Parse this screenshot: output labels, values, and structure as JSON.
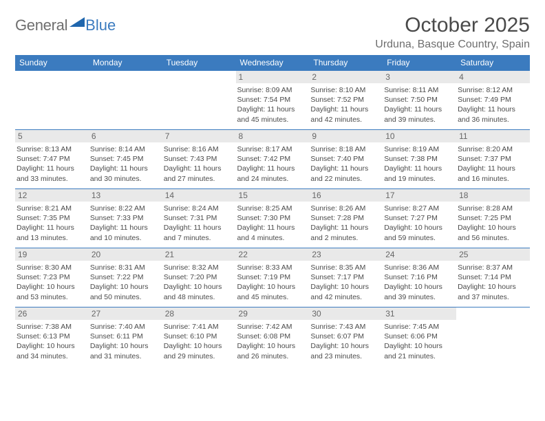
{
  "brand": {
    "part1": "General",
    "part2": "Blue"
  },
  "title": "October 2025",
  "location": "Urduna, Basque Country, Spain",
  "colors": {
    "header_bg": "#3b7bbf",
    "header_text": "#ffffff",
    "daynum_bg": "#e9e9e9",
    "border": "#3b7bbf",
    "text": "#4a4a4a"
  },
  "weekdays": [
    "Sunday",
    "Monday",
    "Tuesday",
    "Wednesday",
    "Thursday",
    "Friday",
    "Saturday"
  ],
  "weeks": [
    [
      null,
      null,
      null,
      {
        "n": 1,
        "sr": "8:09 AM",
        "ss": "7:54 PM",
        "dl": "11 hours and 45 minutes."
      },
      {
        "n": 2,
        "sr": "8:10 AM",
        "ss": "7:52 PM",
        "dl": "11 hours and 42 minutes."
      },
      {
        "n": 3,
        "sr": "8:11 AM",
        "ss": "7:50 PM",
        "dl": "11 hours and 39 minutes."
      },
      {
        "n": 4,
        "sr": "8:12 AM",
        "ss": "7:49 PM",
        "dl": "11 hours and 36 minutes."
      }
    ],
    [
      {
        "n": 5,
        "sr": "8:13 AM",
        "ss": "7:47 PM",
        "dl": "11 hours and 33 minutes."
      },
      {
        "n": 6,
        "sr": "8:14 AM",
        "ss": "7:45 PM",
        "dl": "11 hours and 30 minutes."
      },
      {
        "n": 7,
        "sr": "8:16 AM",
        "ss": "7:43 PM",
        "dl": "11 hours and 27 minutes."
      },
      {
        "n": 8,
        "sr": "8:17 AM",
        "ss": "7:42 PM",
        "dl": "11 hours and 24 minutes."
      },
      {
        "n": 9,
        "sr": "8:18 AM",
        "ss": "7:40 PM",
        "dl": "11 hours and 22 minutes."
      },
      {
        "n": 10,
        "sr": "8:19 AM",
        "ss": "7:38 PM",
        "dl": "11 hours and 19 minutes."
      },
      {
        "n": 11,
        "sr": "8:20 AM",
        "ss": "7:37 PM",
        "dl": "11 hours and 16 minutes."
      }
    ],
    [
      {
        "n": 12,
        "sr": "8:21 AM",
        "ss": "7:35 PM",
        "dl": "11 hours and 13 minutes."
      },
      {
        "n": 13,
        "sr": "8:22 AM",
        "ss": "7:33 PM",
        "dl": "11 hours and 10 minutes."
      },
      {
        "n": 14,
        "sr": "8:24 AM",
        "ss": "7:31 PM",
        "dl": "11 hours and 7 minutes."
      },
      {
        "n": 15,
        "sr": "8:25 AM",
        "ss": "7:30 PM",
        "dl": "11 hours and 4 minutes."
      },
      {
        "n": 16,
        "sr": "8:26 AM",
        "ss": "7:28 PM",
        "dl": "11 hours and 2 minutes."
      },
      {
        "n": 17,
        "sr": "8:27 AM",
        "ss": "7:27 PM",
        "dl": "10 hours and 59 minutes."
      },
      {
        "n": 18,
        "sr": "8:28 AM",
        "ss": "7:25 PM",
        "dl": "10 hours and 56 minutes."
      }
    ],
    [
      {
        "n": 19,
        "sr": "8:30 AM",
        "ss": "7:23 PM",
        "dl": "10 hours and 53 minutes."
      },
      {
        "n": 20,
        "sr": "8:31 AM",
        "ss": "7:22 PM",
        "dl": "10 hours and 50 minutes."
      },
      {
        "n": 21,
        "sr": "8:32 AM",
        "ss": "7:20 PM",
        "dl": "10 hours and 48 minutes."
      },
      {
        "n": 22,
        "sr": "8:33 AM",
        "ss": "7:19 PM",
        "dl": "10 hours and 45 minutes."
      },
      {
        "n": 23,
        "sr": "8:35 AM",
        "ss": "7:17 PM",
        "dl": "10 hours and 42 minutes."
      },
      {
        "n": 24,
        "sr": "8:36 AM",
        "ss": "7:16 PM",
        "dl": "10 hours and 39 minutes."
      },
      {
        "n": 25,
        "sr": "8:37 AM",
        "ss": "7:14 PM",
        "dl": "10 hours and 37 minutes."
      }
    ],
    [
      {
        "n": 26,
        "sr": "7:38 AM",
        "ss": "6:13 PM",
        "dl": "10 hours and 34 minutes."
      },
      {
        "n": 27,
        "sr": "7:40 AM",
        "ss": "6:11 PM",
        "dl": "10 hours and 31 minutes."
      },
      {
        "n": 28,
        "sr": "7:41 AM",
        "ss": "6:10 PM",
        "dl": "10 hours and 29 minutes."
      },
      {
        "n": 29,
        "sr": "7:42 AM",
        "ss": "6:08 PM",
        "dl": "10 hours and 26 minutes."
      },
      {
        "n": 30,
        "sr": "7:43 AM",
        "ss": "6:07 PM",
        "dl": "10 hours and 23 minutes."
      },
      {
        "n": 31,
        "sr": "7:45 AM",
        "ss": "6:06 PM",
        "dl": "10 hours and 21 minutes."
      },
      null
    ]
  ],
  "labels": {
    "sunrise": "Sunrise:",
    "sunset": "Sunset:",
    "daylight": "Daylight:"
  }
}
